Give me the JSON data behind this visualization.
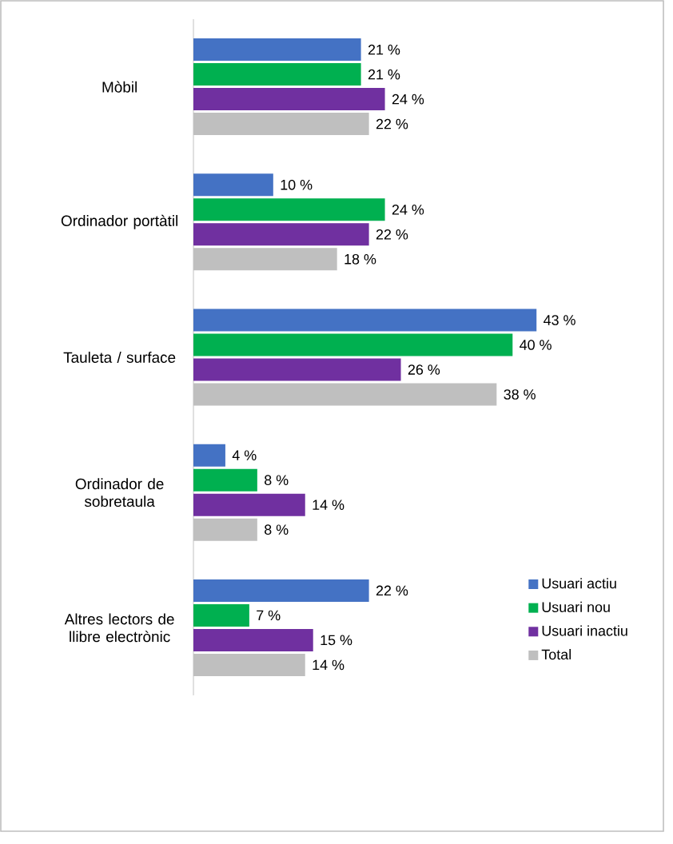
{
  "chart_data": {
    "type": "bar",
    "orientation": "horizontal",
    "legend": "bottom right",
    "categories": [
      "Mòbil",
      "Ordinador portàtil",
      "Tauleta / surface",
      "Ordinador de sobretaula",
      "Altres lectors de llibre electrònic"
    ],
    "series": [
      {
        "name": "Usuari actiu",
        "color": "#4472c4",
        "values": [
          21,
          10,
          43,
          4,
          22
        ],
        "value_labels": [
          "21 %",
          "10 %",
          "43 %",
          "4 %",
          "22 %"
        ]
      },
      {
        "name": "Usuari nou",
        "color": "#00b050",
        "values": [
          21,
          24,
          40,
          8,
          7
        ],
        "value_labels": [
          "21 %",
          "24 %",
          "40 %",
          "8 %",
          "7 %"
        ]
      },
      {
        "name": "Usuari inactiu",
        "color": "#7030a0",
        "values": [
          24,
          22,
          26,
          14,
          15
        ],
        "value_labels": [
          "24 %",
          "22 %",
          "26 %",
          "14 %",
          "15 %"
        ]
      },
      {
        "name": "Total",
        "color": "#bfbfbf",
        "values": [
          22,
          18,
          38,
          8,
          14
        ],
        "value_labels": [
          "22 %",
          "18 %",
          "38 %",
          "8 %",
          "14 %"
        ]
      }
    ]
  }
}
